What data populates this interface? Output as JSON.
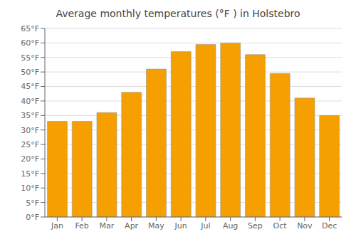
{
  "chart_data": {
    "type": "bar",
    "title": "Average monthly temperatures (°F ) in Holstebro",
    "categories": [
      "Jan",
      "Feb",
      "Mar",
      "Apr",
      "May",
      "Jun",
      "Jul",
      "Aug",
      "Sep",
      "Oct",
      "Nov",
      "Dec"
    ],
    "values": [
      33,
      33,
      36,
      43,
      51,
      57,
      59.5,
      60,
      56,
      49.5,
      41,
      35
    ],
    "color": "#F5A000",
    "ylim": [
      0,
      65
    ],
    "yticks": [
      {
        "value": 0,
        "label": "0°F"
      },
      {
        "value": 5,
        "label": "5°F"
      },
      {
        "value": 10,
        "label": "10°F"
      },
      {
        "value": 15,
        "label": "15°F"
      },
      {
        "value": 20,
        "label": "20°F"
      },
      {
        "value": 25,
        "label": "25°F"
      },
      {
        "value": 30,
        "label": "30°F"
      },
      {
        "value": 35,
        "label": "35°F"
      },
      {
        "value": 40,
        "label": "40°F"
      },
      {
        "value": 45,
        "label": "45°F"
      },
      {
        "value": 50,
        "label": "50°F"
      },
      {
        "value": 55,
        "label": "55°F"
      },
      {
        "value": 60,
        "label": "60°F"
      },
      {
        "value": 65,
        "label": "65°F"
      }
    ],
    "grid": true
  }
}
